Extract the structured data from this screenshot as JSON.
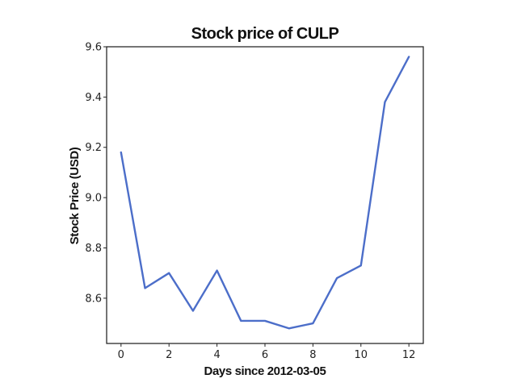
{
  "chart_data": {
    "type": "line",
    "title": "Stock price of CULP",
    "xlabel": "Days since 2012-03-05",
    "ylabel": "Stock Price (USD)",
    "x": [
      0,
      1,
      2,
      3,
      4,
      5,
      6,
      7,
      8,
      9,
      10,
      11,
      12
    ],
    "series": [
      {
        "values": [
          9.18,
          8.64,
          8.7,
          8.55,
          8.71,
          8.51,
          8.51,
          8.48,
          8.5,
          8.68,
          8.73,
          9.38,
          9.56
        ],
        "color": "#4c6ec9"
      }
    ],
    "xlim": [
      -0.6,
      12.6
    ],
    "ylim": [
      8.42,
      9.6
    ],
    "xticks": [
      0,
      2,
      4,
      6,
      8,
      10,
      12
    ],
    "yticks": [
      8.6,
      8.8,
      9.0,
      9.2,
      9.4,
      9.6
    ],
    "ytick_labels": [
      "8.6",
      "8.8",
      "9.0",
      "9.2",
      "9.4",
      "9.6"
    ],
    "grid": false,
    "legend": "none"
  }
}
